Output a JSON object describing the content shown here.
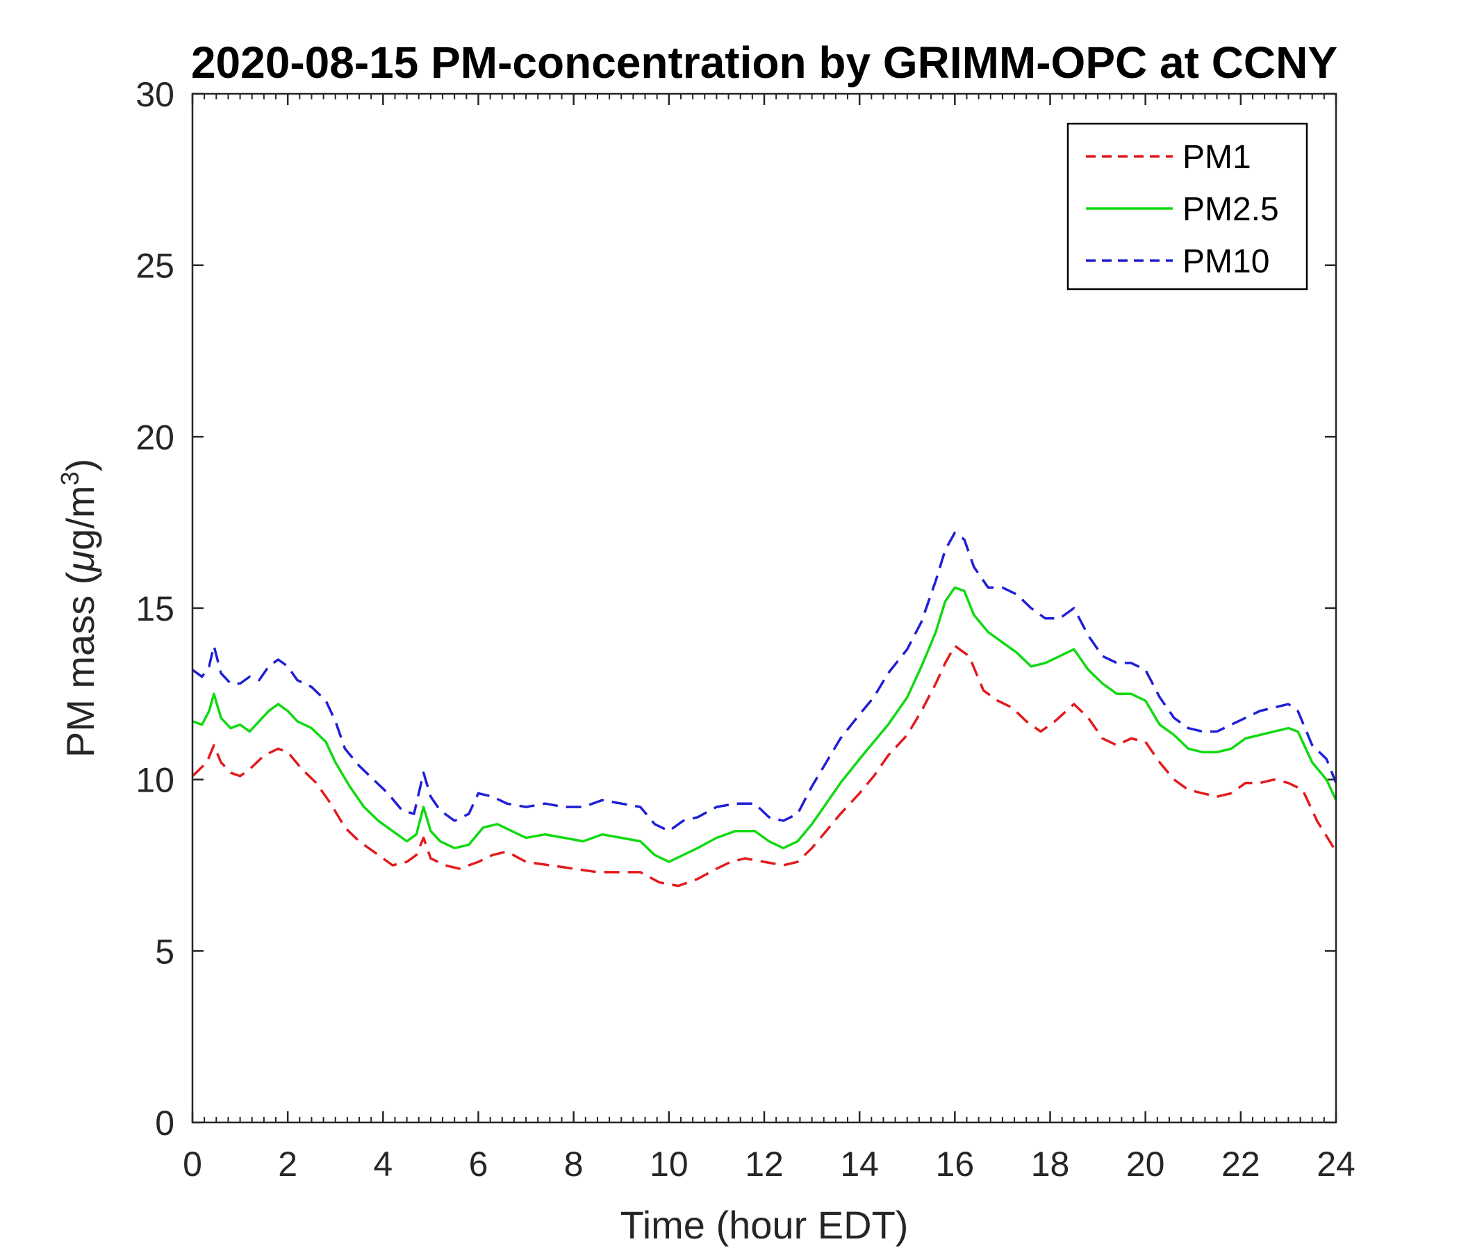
{
  "chart_data": {
    "type": "line",
    "title": "2020-08-15 PM-concentration by GRIMM-OPC at CCNY",
    "xlabel": "Time (hour EDT)",
    "ylabel_prefix": "PM mass (",
    "ylabel_mu": "μ",
    "ylabel_unit": "g/m",
    "ylabel_exp": "3",
    "ylabel_suffix": ")",
    "xlim": [
      0,
      24
    ],
    "ylim": [
      0,
      30
    ],
    "xticks": [
      0,
      2,
      4,
      6,
      8,
      10,
      12,
      14,
      16,
      18,
      20,
      22,
      24
    ],
    "yticks": [
      0,
      5,
      10,
      15,
      20,
      25,
      30
    ],
    "grid": false,
    "legend_position": "top-right",
    "series": [
      {
        "name": "PM1",
        "color": "#e31a1c",
        "dash": "dashed",
        "x": [
          0,
          0.3,
          0.45,
          0.6,
          0.8,
          1.0,
          1.2,
          1.5,
          1.8,
          2.0,
          2.3,
          2.6,
          2.9,
          3.2,
          3.5,
          3.9,
          4.2,
          4.5,
          4.7,
          4.85,
          5.0,
          5.3,
          5.6,
          6.0,
          6.3,
          6.6,
          7.0,
          7.5,
          8.0,
          8.5,
          9.0,
          9.4,
          9.8,
          10.2,
          10.6,
          11.0,
          11.3,
          11.6,
          12.0,
          12.4,
          12.7,
          13.0,
          13.3,
          13.6,
          14.0,
          14.3,
          14.6,
          15.0,
          15.3,
          15.6,
          15.8,
          16.0,
          16.3,
          16.6,
          16.9,
          17.2,
          17.5,
          17.8,
          18.1,
          18.5,
          18.8,
          19.1,
          19.4,
          19.7,
          20.0,
          20.3,
          20.6,
          20.9,
          21.2,
          21.5,
          21.8,
          22.1,
          22.4,
          22.7,
          23.0,
          23.3,
          23.6,
          24.0
        ],
        "values": [
          10.1,
          10.5,
          11.0,
          10.5,
          10.2,
          10.1,
          10.3,
          10.7,
          10.9,
          10.8,
          10.3,
          9.9,
          9.3,
          8.6,
          8.2,
          7.8,
          7.5,
          7.6,
          7.8,
          8.3,
          7.7,
          7.5,
          7.4,
          7.6,
          7.8,
          7.9,
          7.6,
          7.5,
          7.4,
          7.3,
          7.3,
          7.3,
          7.0,
          6.9,
          7.1,
          7.4,
          7.6,
          7.7,
          7.6,
          7.5,
          7.6,
          8.0,
          8.5,
          9.0,
          9.6,
          10.1,
          10.7,
          11.3,
          12.0,
          12.8,
          13.4,
          13.9,
          13.6,
          12.6,
          12.3,
          12.1,
          11.7,
          11.4,
          11.7,
          12.2,
          11.8,
          11.2,
          11.0,
          11.2,
          11.1,
          10.5,
          10.0,
          9.7,
          9.6,
          9.5,
          9.6,
          9.9,
          9.9,
          10.0,
          9.9,
          9.7,
          8.8,
          7.9
        ]
      },
      {
        "name": "PM2.5",
        "color": "#11d911",
        "dash": "solid",
        "x": [
          0,
          0.2,
          0.35,
          0.45,
          0.6,
          0.8,
          1.0,
          1.2,
          1.4,
          1.6,
          1.8,
          2.0,
          2.2,
          2.5,
          2.8,
          3.0,
          3.3,
          3.6,
          3.9,
          4.2,
          4.5,
          4.7,
          4.85,
          5.0,
          5.2,
          5.5,
          5.8,
          6.1,
          6.4,
          6.7,
          7.0,
          7.4,
          7.8,
          8.2,
          8.6,
          9.0,
          9.4,
          9.7,
          10.0,
          10.3,
          10.6,
          11.0,
          11.4,
          11.8,
          12.1,
          12.4,
          12.7,
          13.0,
          13.3,
          13.6,
          14.0,
          14.3,
          14.6,
          15.0,
          15.3,
          15.6,
          15.8,
          16.0,
          16.2,
          16.4,
          16.7,
          17.0,
          17.3,
          17.6,
          17.9,
          18.2,
          18.5,
          18.8,
          19.1,
          19.4,
          19.7,
          20.0,
          20.3,
          20.6,
          20.9,
          21.2,
          21.5,
          21.8,
          22.1,
          22.4,
          22.7,
          23.0,
          23.2,
          23.5,
          23.8,
          24.0
        ],
        "values": [
          11.7,
          11.6,
          12.0,
          12.5,
          11.8,
          11.5,
          11.6,
          11.4,
          11.7,
          12.0,
          12.2,
          12.0,
          11.7,
          11.5,
          11.1,
          10.5,
          9.8,
          9.2,
          8.8,
          8.5,
          8.2,
          8.4,
          9.2,
          8.5,
          8.2,
          8.0,
          8.1,
          8.6,
          8.7,
          8.5,
          8.3,
          8.4,
          8.3,
          8.2,
          8.4,
          8.3,
          8.2,
          7.8,
          7.6,
          7.8,
          8.0,
          8.3,
          8.5,
          8.5,
          8.2,
          8.0,
          8.2,
          8.7,
          9.3,
          9.9,
          10.6,
          11.1,
          11.6,
          12.4,
          13.3,
          14.3,
          15.2,
          15.6,
          15.5,
          14.8,
          14.3,
          14.0,
          13.7,
          13.3,
          13.4,
          13.6,
          13.8,
          13.2,
          12.8,
          12.5,
          12.5,
          12.3,
          11.6,
          11.3,
          10.9,
          10.8,
          10.8,
          10.9,
          11.2,
          11.3,
          11.4,
          11.5,
          11.4,
          10.5,
          10.0,
          9.4
        ]
      },
      {
        "name": "PM10",
        "color": "#1f1fd6",
        "dash": "dashed",
        "x": [
          0,
          0.2,
          0.35,
          0.45,
          0.6,
          0.8,
          1.0,
          1.2,
          1.4,
          1.6,
          1.8,
          2.0,
          2.2,
          2.5,
          2.8,
          3.0,
          3.2,
          3.5,
          3.8,
          4.1,
          4.4,
          4.65,
          4.85,
          5.0,
          5.2,
          5.5,
          5.8,
          6.0,
          6.3,
          6.6,
          7.0,
          7.4,
          7.8,
          8.2,
          8.6,
          9.0,
          9.4,
          9.7,
          10.0,
          10.3,
          10.6,
          11.0,
          11.4,
          11.8,
          12.1,
          12.4,
          12.7,
          13.0,
          13.3,
          13.6,
          14.0,
          14.3,
          14.6,
          15.0,
          15.3,
          15.6,
          15.8,
          16.0,
          16.2,
          16.4,
          16.7,
          17.0,
          17.3,
          17.6,
          17.9,
          18.2,
          18.5,
          18.8,
          19.1,
          19.4,
          19.7,
          20.0,
          20.3,
          20.6,
          20.9,
          21.2,
          21.5,
          21.8,
          22.1,
          22.4,
          22.7,
          23.0,
          23.2,
          23.5,
          23.8,
          24.0
        ],
        "values": [
          13.2,
          13.0,
          13.3,
          13.9,
          13.1,
          12.8,
          12.8,
          13.0,
          12.9,
          13.3,
          13.5,
          13.3,
          12.9,
          12.7,
          12.3,
          11.7,
          10.9,
          10.4,
          10.0,
          9.6,
          9.1,
          9.0,
          10.2,
          9.5,
          9.1,
          8.8,
          9.0,
          9.6,
          9.5,
          9.3,
          9.2,
          9.3,
          9.2,
          9.2,
          9.4,
          9.3,
          9.2,
          8.7,
          8.5,
          8.8,
          8.9,
          9.2,
          9.3,
          9.3,
          8.9,
          8.8,
          9.0,
          9.8,
          10.5,
          11.2,
          11.9,
          12.4,
          13.1,
          13.8,
          14.6,
          15.8,
          16.7,
          17.2,
          17.0,
          16.2,
          15.6,
          15.6,
          15.4,
          15.0,
          14.7,
          14.7,
          15.0,
          14.2,
          13.6,
          13.4,
          13.4,
          13.2,
          12.4,
          11.8,
          11.5,
          11.4,
          11.4,
          11.6,
          11.8,
          12.0,
          12.1,
          12.2,
          12.0,
          11.0,
          10.6,
          9.9
        ]
      }
    ]
  }
}
